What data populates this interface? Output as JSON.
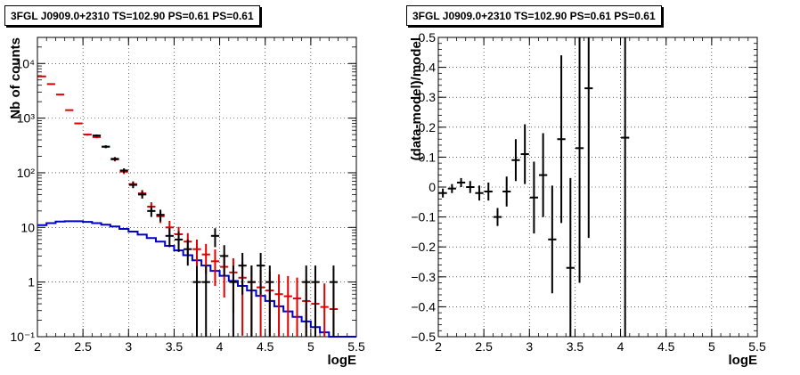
{
  "chart_data": [
    {
      "type": "scatter",
      "title": "3FGL J0909.0+2310 TS=102.90 PS=0.61 PS=0.61",
      "xlabel": "logE",
      "ylabel": "Nb of counts",
      "xlim": [
        2,
        5.5
      ],
      "ylim": [
        0.1,
        30000
      ],
      "yscale": "log",
      "grid": true,
      "x_ticks": [
        "2",
        "2.5",
        "3",
        "3.5",
        "4",
        "4.5",
        "5",
        "5.5"
      ],
      "y_ticks": [
        "10⁻¹",
        "1",
        "10",
        "10²",
        "10³",
        "10⁴"
      ],
      "series": [
        {
          "color": "#000000",
          "kind": "points",
          "x": [
            2.65,
            2.75,
            2.85,
            2.95,
            3.05,
            3.15,
            3.25,
            3.35,
            3.45,
            3.55,
            3.65,
            3.75,
            3.85,
            3.95,
            4.05,
            4.15,
            4.25,
            4.35,
            4.45,
            4.55,
            4.65,
            4.75,
            4.85,
            4.95,
            5.05,
            5.15,
            5.25
          ],
          "y": [
            480,
            300,
            180,
            110,
            60,
            40,
            20,
            17,
            7,
            6,
            4,
            1,
            1,
            7,
            3,
            1,
            2,
            1,
            2,
            1,
            0,
            0,
            0,
            1,
            1,
            0,
            1
          ]
        },
        {
          "color": "#dd0000",
          "kind": "model",
          "x": [
            2.05,
            2.15,
            2.25,
            2.35,
            2.45,
            2.55,
            2.65,
            2.75,
            2.85,
            2.95,
            3.05,
            3.15,
            3.25,
            3.35,
            3.45,
            3.55,
            3.65,
            3.75,
            3.85,
            3.95,
            4.05,
            4.15,
            4.25,
            4.35,
            4.45,
            4.55,
            4.65,
            4.75,
            4.85,
            4.95,
            5.05,
            5.15,
            5.25
          ],
          "y": [
            5800,
            4200,
            2700,
            1400,
            800,
            500,
            450,
            300,
            175,
            105,
            62,
            42,
            24,
            16,
            10,
            7.5,
            5.5,
            4,
            3.2,
            2.4,
            1.9,
            1.5,
            1.2,
            1,
            0.8,
            0.7,
            0.6,
            0.55,
            0.5,
            0.45,
            0.4,
            0.35,
            0.32
          ]
        },
        {
          "color": "#0000cc",
          "kind": "component",
          "x": [
            2.0,
            2.1,
            2.2,
            2.3,
            2.4,
            2.5,
            2.6,
            2.7,
            2.8,
            2.9,
            3.0,
            3.1,
            3.2,
            3.3,
            3.4,
            3.5,
            3.6,
            3.7,
            3.8,
            3.9,
            4.0,
            4.1,
            4.2,
            4.3,
            4.4,
            4.5,
            4.6,
            4.7,
            4.8,
            4.9,
            5.0,
            5.1,
            5.2,
            5.3,
            5.4
          ],
          "y": [
            11,
            12,
            12.8,
            13,
            13,
            12.6,
            12,
            11.2,
            10.4,
            9.4,
            8.4,
            7.4,
            6.4,
            5.5,
            4.6,
            3.8,
            3.1,
            2.5,
            2.0,
            1.6,
            1.3,
            1.05,
            0.85,
            0.7,
            0.56,
            0.45,
            0.36,
            0.29,
            0.23,
            0.19,
            0.15,
            0.12,
            0.1,
            0.08,
            0.07
          ]
        }
      ]
    },
    {
      "type": "scatter",
      "title": "3FGL J0909.0+2310 TS=102.90 PS=0.61 PS=0.61",
      "xlabel": "logE",
      "ylabel": "(data-model)/model",
      "xlim": [
        2,
        5.5
      ],
      "ylim": [
        -0.5,
        0.5
      ],
      "grid": true,
      "x_ticks": [
        "2",
        "2.5",
        "3",
        "3.5",
        "4",
        "4.5",
        "5",
        "5.5"
      ],
      "y_ticks": [
        "−0.5",
        "−0.4",
        "−0.3",
        "−0.2",
        "−0.1",
        "0",
        "0.1",
        "0.2",
        "0.3",
        "0.4",
        "0.5"
      ],
      "series": [
        {
          "color": "#000000",
          "x": [
            2.05,
            2.15,
            2.25,
            2.35,
            2.45,
            2.55,
            2.65,
            2.75,
            2.85,
            2.95,
            3.05,
            3.15,
            3.25,
            3.35,
            3.45,
            3.55,
            3.65,
            4.05
          ],
          "y": [
            -0.02,
            -0.005,
            0.015,
            0.0,
            -0.02,
            -0.015,
            -0.1,
            -0.015,
            0.09,
            0.11,
            -0.035,
            0.04,
            -0.175,
            0.16,
            -0.27,
            0.13,
            0.33,
            0.165
          ],
          "err": [
            0.015,
            0.015,
            0.015,
            0.02,
            0.025,
            0.03,
            0.03,
            0.05,
            0.07,
            0.1,
            0.12,
            0.14,
            0.18,
            0.28,
            0.3,
            0.45,
            0.5,
            0.9
          ]
        }
      ]
    }
  ]
}
